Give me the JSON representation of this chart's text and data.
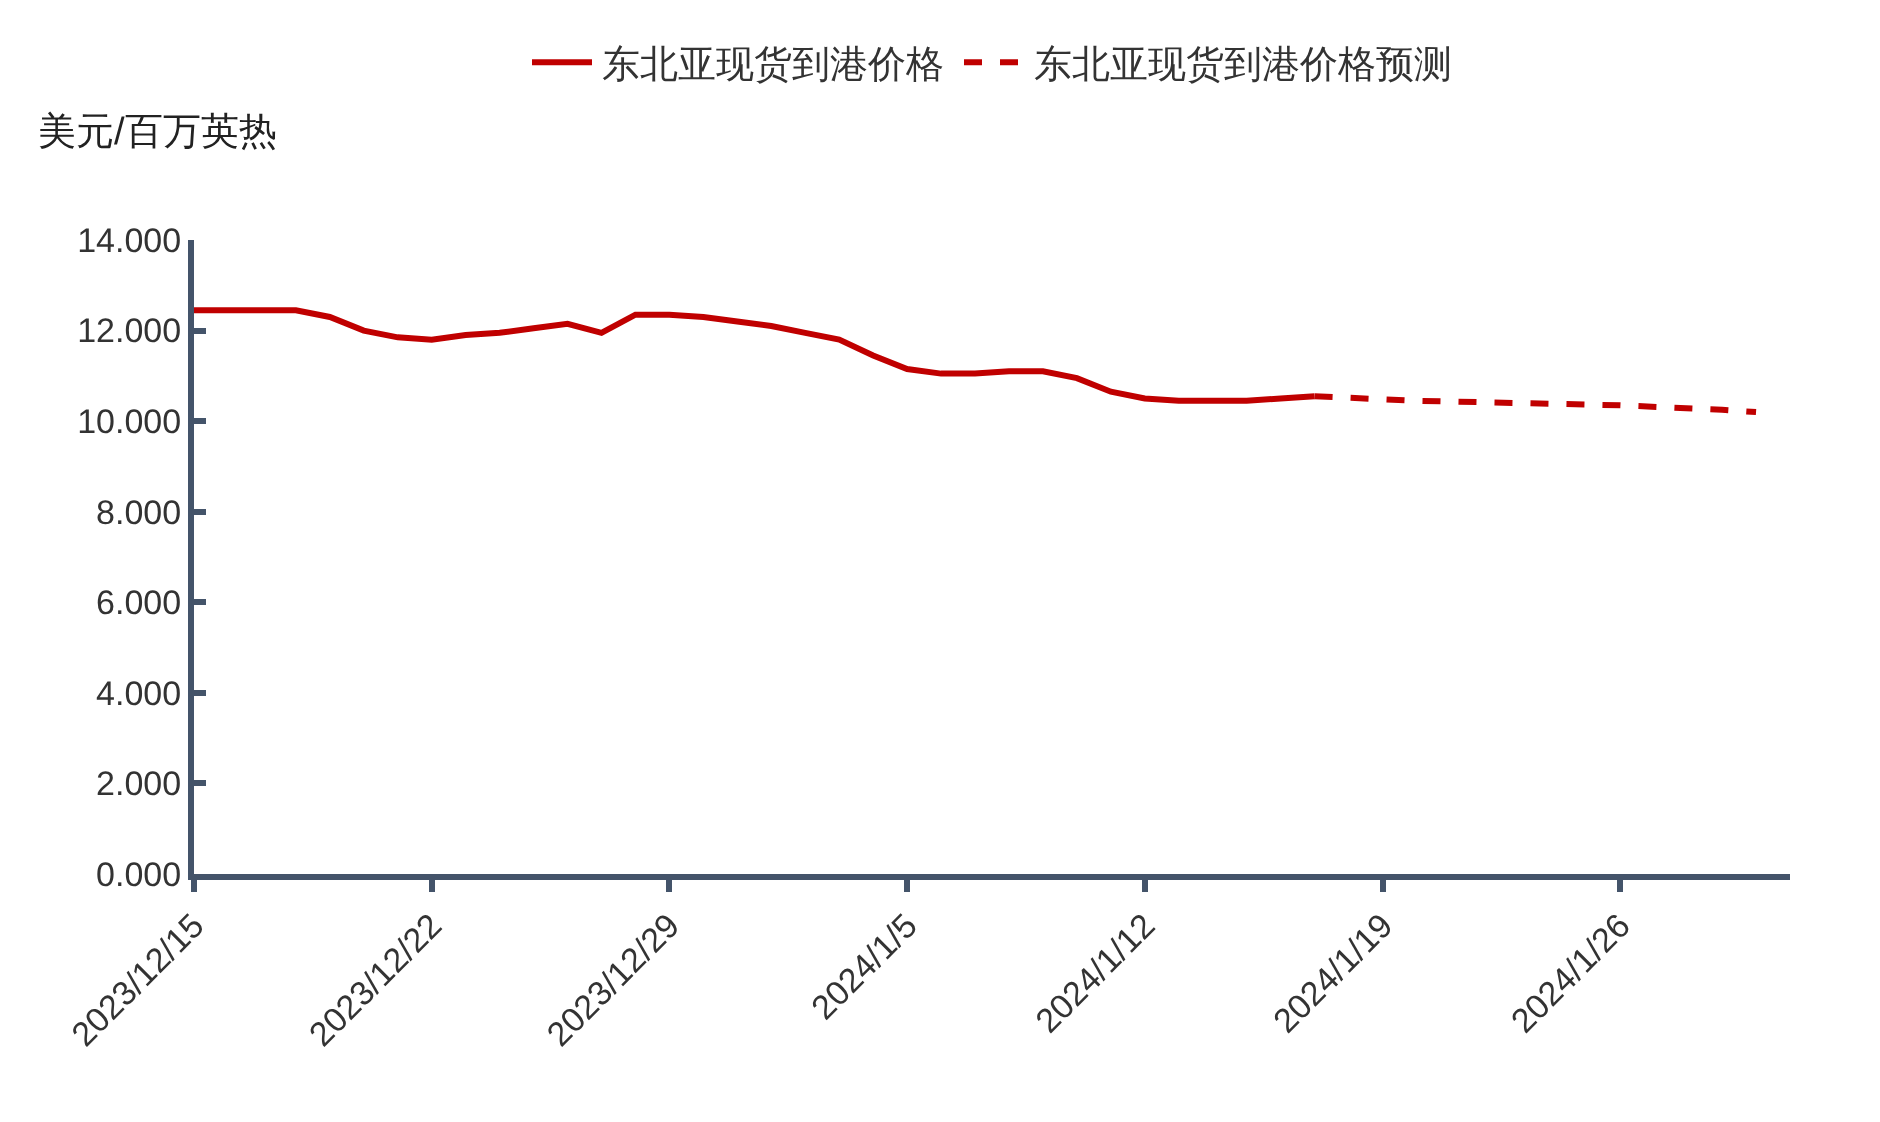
{
  "chart_data": {
    "type": "line",
    "ylabel": "美元/百万英热",
    "xlim": [
      "2023-12-15",
      "2024-01-31"
    ],
    "xticks": [
      {
        "value": "2023-12-15",
        "label": "2023/12/15"
      },
      {
        "value": "2023-12-22",
        "label": "2023/12/22"
      },
      {
        "value": "2023-12-29",
        "label": "2023/12/29"
      },
      {
        "value": "2024-01-05",
        "label": "2024/1/5"
      },
      {
        "value": "2024-01-12",
        "label": "2024/1/12"
      },
      {
        "value": "2024-01-19",
        "label": "2024/1/19"
      },
      {
        "value": "2024-01-26",
        "label": "2024/1/26"
      }
    ],
    "ylim": [
      0,
      14
    ],
    "yticks": [
      {
        "value": 0,
        "label": "0.000"
      },
      {
        "value": 2,
        "label": "2.000"
      },
      {
        "value": 4,
        "label": "4.000"
      },
      {
        "value": 6,
        "label": "6.000"
      },
      {
        "value": 8,
        "label": "8.000"
      },
      {
        "value": 10,
        "label": "10.000"
      },
      {
        "value": 12,
        "label": "12.000"
      },
      {
        "value": 14,
        "label": "14.000"
      }
    ],
    "grid": false,
    "legend": "top",
    "marker": "none",
    "series": [
      {
        "name": "东北亚现货到港价格",
        "color": "#c00000",
        "line_style": "solid",
        "x": [
          "2023-12-15",
          "2023-12-16",
          "2023-12-17",
          "2023-12-18",
          "2023-12-19",
          "2023-12-20",
          "2023-12-21",
          "2023-12-22",
          "2023-12-23",
          "2023-12-24",
          "2023-12-25",
          "2023-12-26",
          "2023-12-27",
          "2023-12-28",
          "2023-12-29",
          "2023-12-30",
          "2023-12-31",
          "2024-01-01",
          "2024-01-02",
          "2024-01-03",
          "2024-01-04",
          "2024-01-05",
          "2024-01-06",
          "2024-01-07",
          "2024-01-08",
          "2024-01-09",
          "2024-01-10",
          "2024-01-11",
          "2024-01-12",
          "2024-01-13",
          "2024-01-14",
          "2024-01-15",
          "2024-01-16",
          "2024-01-17"
        ],
        "values": [
          12.45,
          12.45,
          12.45,
          12.45,
          12.3,
          12.0,
          11.85,
          11.8,
          11.9,
          11.95,
          12.05,
          12.15,
          11.95,
          12.35,
          12.35,
          12.3,
          12.2,
          12.1,
          11.95,
          11.8,
          11.45,
          11.15,
          11.05,
          11.05,
          11.1,
          11.1,
          10.95,
          10.65,
          10.5,
          10.45,
          10.45,
          10.45,
          10.5,
          10.55
        ]
      },
      {
        "name": "东北亚现货到港价格预测",
        "color": "#c00000",
        "line_style": "dashed",
        "x": [
          "2024-01-17",
          "2024-01-20",
          "2024-01-23",
          "2024-01-26",
          "2024-01-29",
          "2024-01-30"
        ],
        "values": [
          10.55,
          10.45,
          10.4,
          10.35,
          10.25,
          10.2
        ]
      }
    ]
  }
}
